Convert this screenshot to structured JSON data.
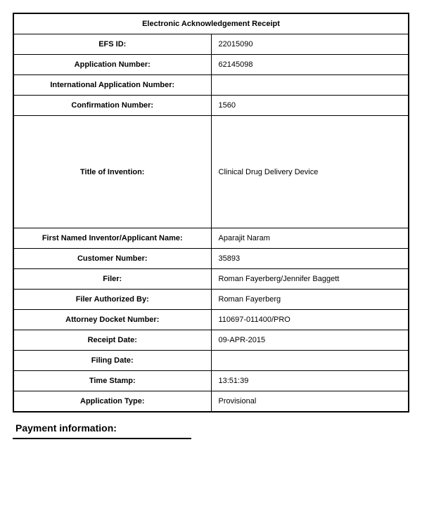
{
  "document": {
    "title": "Electronic Acknowledgement Receipt",
    "section_header": "Payment information:",
    "rows": [
      {
        "label": "EFS ID:",
        "value": "22015090",
        "tall": false
      },
      {
        "label": "Application Number:",
        "value": "62145098",
        "tall": false
      },
      {
        "label": "International Application Number:",
        "value": "",
        "tall": false
      },
      {
        "label": "Confirmation Number:",
        "value": "1560",
        "tall": false
      },
      {
        "label": "Title of Invention:",
        "value": "Clinical Drug Delivery Device",
        "tall": true
      },
      {
        "label": "First Named Inventor/Applicant Name:",
        "value": "Aparajit Naram",
        "tall": false
      },
      {
        "label": "Customer Number:",
        "value": "35893",
        "tall": false
      },
      {
        "label": "Filer:",
        "value": "Roman Fayerberg/Jennifer Baggett",
        "tall": false
      },
      {
        "label": "Filer Authorized By:",
        "value": "Roman Fayerberg",
        "tall": false
      },
      {
        "label": "Attorney Docket Number:",
        "value": "110697-011400/PRO",
        "tall": false
      },
      {
        "label": "Receipt Date:",
        "value": "09-APR-2015",
        "tall": false
      },
      {
        "label": "Filing Date:",
        "value": "",
        "tall": false
      },
      {
        "label": "Time Stamp:",
        "value": "13:51:39",
        "tall": false
      },
      {
        "label": "Application Type:",
        "value": "Provisional",
        "tall": false
      }
    ]
  },
  "styling": {
    "border_color": "#000000",
    "background_color": "#ffffff",
    "text_color": "#000000",
    "title_fontsize": 14,
    "label_fontsize": 11,
    "value_fontsize": 10,
    "label_col_width_pct": 50,
    "value_col_width_pct": 50
  }
}
